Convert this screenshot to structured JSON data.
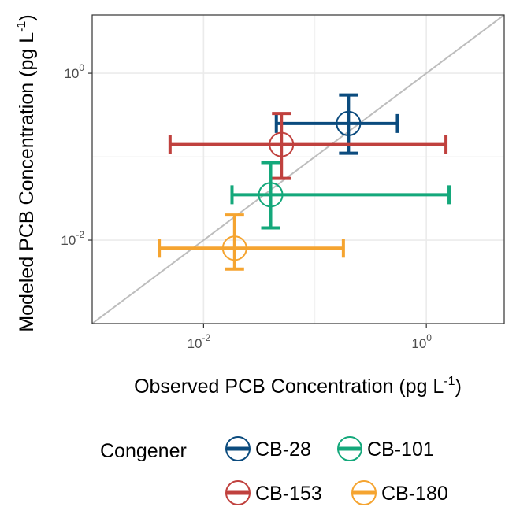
{
  "chart_data": {
    "type": "scatter",
    "xlabel": "Observed PCB Concentration (pg L",
    "ylabel": "Modeled PCB Concentration (pg L",
    "axis_unit_superscript": "-1",
    "x_scale": "log10",
    "y_scale": "log10",
    "xlim": [
      0.001,
      5
    ],
    "ylim": [
      0.001,
      5
    ],
    "x_ticks": [
      {
        "value": 0.01,
        "base": "10",
        "exp": "-2"
      },
      {
        "value": 1,
        "base": "10",
        "exp": "0"
      }
    ],
    "y_ticks": [
      {
        "value": 0.01,
        "base": "10",
        "exp": "-2"
      },
      {
        "value": 1,
        "base": "10",
        "exp": "0"
      }
    ],
    "grid": true,
    "reference_line": "y = x",
    "legend": {
      "title": "Congener",
      "position": "bottom",
      "entries": [
        {
          "name": "CB-28",
          "color": "#0b4b7e"
        },
        {
          "name": "CB-101",
          "color": "#14a87b"
        },
        {
          "name": "CB-153",
          "color": "#c0413e"
        },
        {
          "name": "CB-180",
          "color": "#f5a430"
        }
      ]
    },
    "series": [
      {
        "name": "CB-28",
        "color": "#0b4b7e",
        "x": 0.2,
        "y": 0.25,
        "x_low": 0.045,
        "x_high": 0.55,
        "y_low": 0.11,
        "y_high": 0.55
      },
      {
        "name": "CB-153",
        "color": "#c0413e",
        "x": 0.05,
        "y": 0.14,
        "x_low": 0.005,
        "x_high": 1.5,
        "y_low": 0.055,
        "y_high": 0.33
      },
      {
        "name": "CB-101",
        "color": "#14a87b",
        "x": 0.04,
        "y": 0.035,
        "x_low": 0.018,
        "x_high": 1.6,
        "y_low": 0.014,
        "y_high": 0.085
      },
      {
        "name": "CB-180",
        "color": "#f5a430",
        "x": 0.019,
        "y": 0.008,
        "x_low": 0.004,
        "x_high": 0.18,
        "y_low": 0.0045,
        "y_high": 0.02
      }
    ]
  }
}
